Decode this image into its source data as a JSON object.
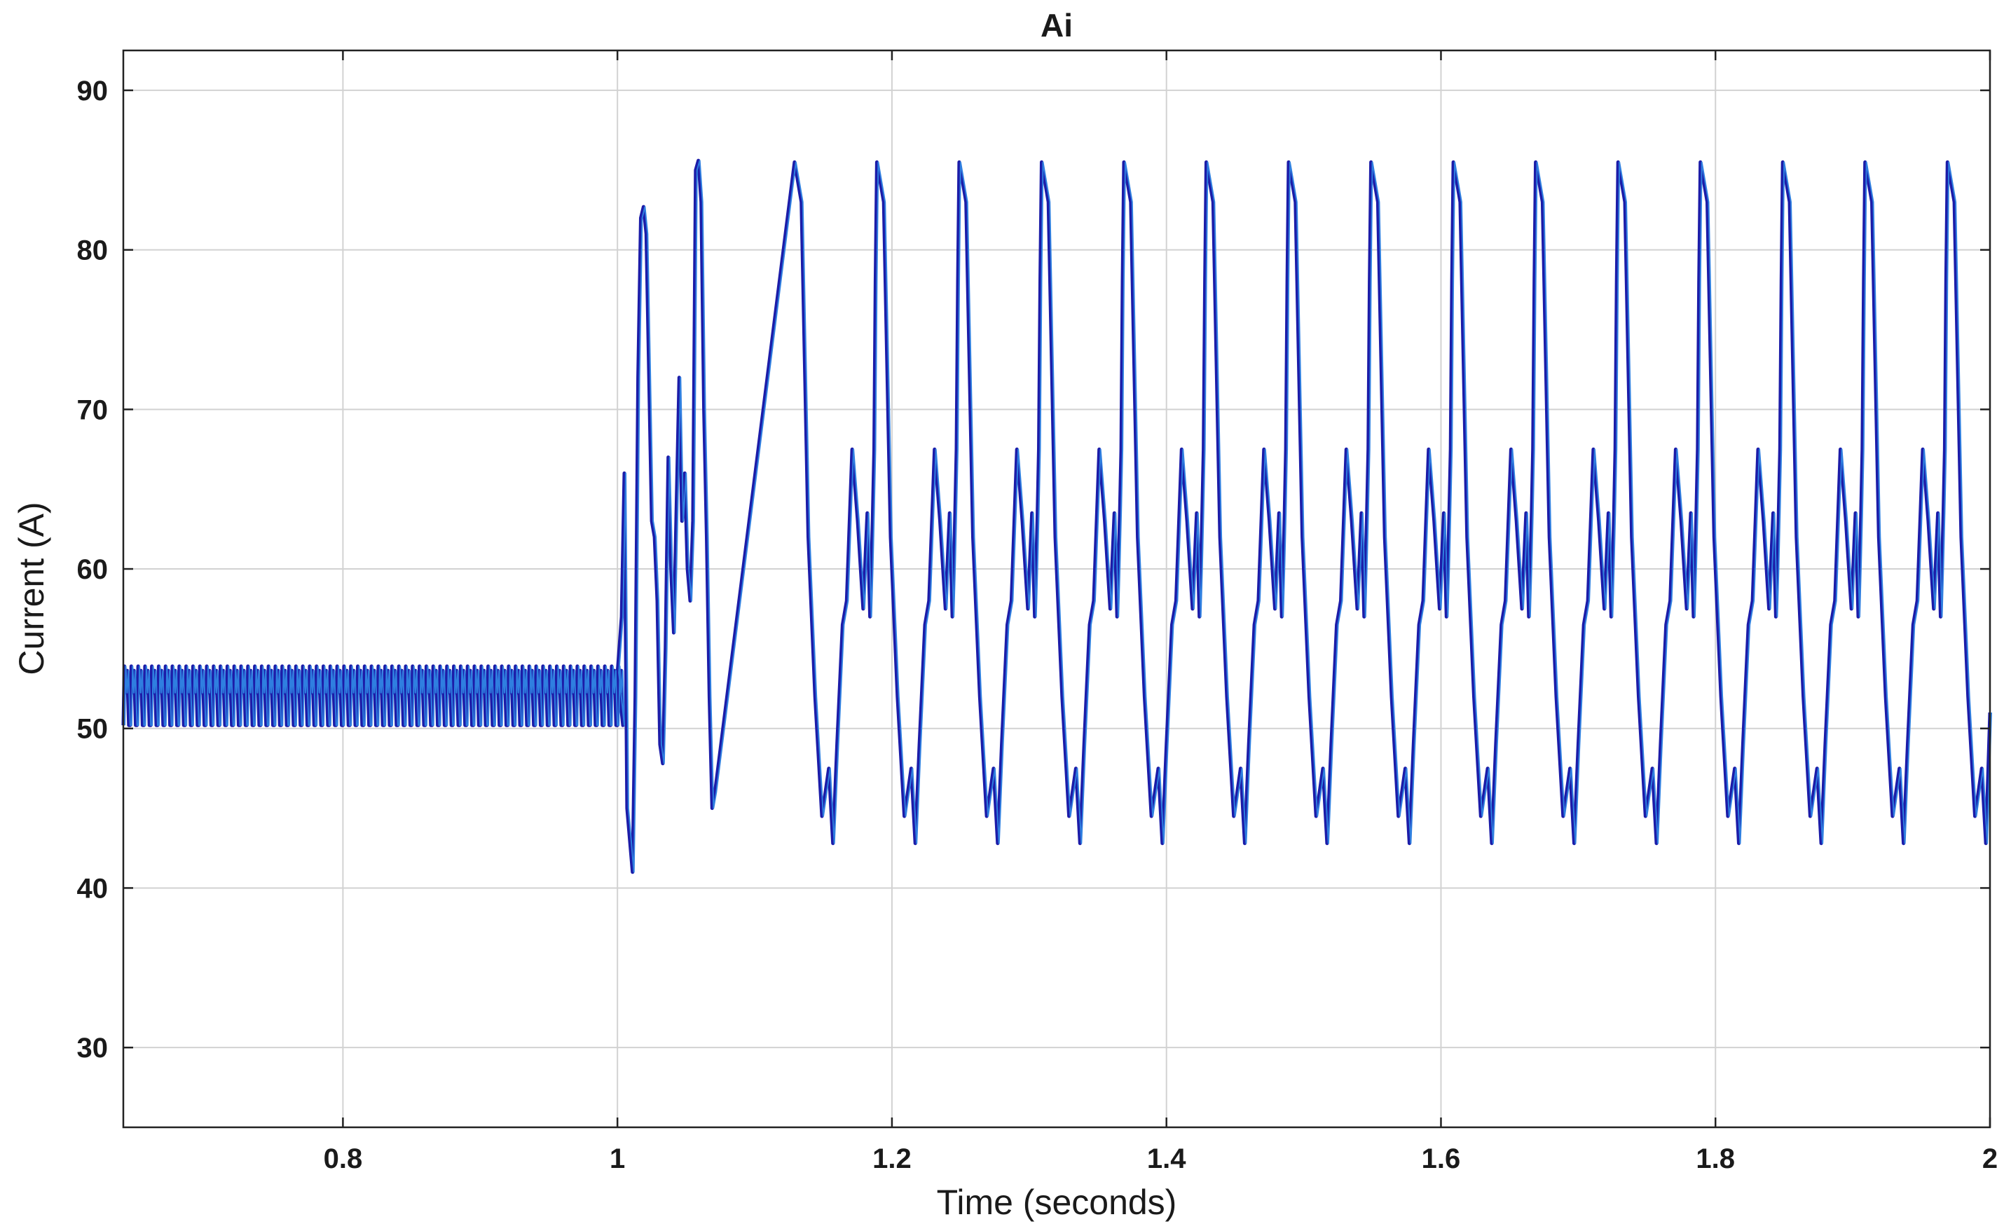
{
  "chart_data": {
    "type": "line",
    "title": "Ai",
    "xlabel": "Time (seconds)",
    "ylabel": "Current (A)",
    "xlim": [
      0.64,
      2.0
    ],
    "ylim": [
      25,
      92.5
    ],
    "grid": true,
    "x_ticks": [
      0.8,
      1,
      1.2,
      1.4,
      1.6,
      1.8,
      2
    ],
    "x_tick_labels": [
      "0.8",
      "1",
      "1.2",
      "1.4",
      "1.6",
      "1.8",
      "2"
    ],
    "y_ticks": [
      30,
      40,
      50,
      60,
      70,
      80,
      90
    ],
    "y_tick_labels": [
      "30",
      "40",
      "50",
      "60",
      "70",
      "80",
      "90"
    ],
    "colors": {
      "line_dark": "#1c1ca8",
      "line_light": "#2f7fe0",
      "grid": "#d2d2d2",
      "axis": "#222222"
    },
    "series": [
      {
        "segments": [
          {
            "kind": "ripple",
            "x_start": 0.64,
            "x_end": 1.0,
            "period": 0.005,
            "min": 50.2,
            "max": 53.9
          },
          {
            "kind": "points",
            "x": [
              1.0,
              1.003,
              1.005,
              1.007,
              1.009,
              1.011,
              1.013,
              1.015,
              1.017,
              1.019,
              1.021,
              1.023,
              1.025,
              1.027,
              1.029,
              1.031,
              1.033,
              1.035,
              1.037,
              1.039,
              1.041,
              1.043,
              1.045,
              1.047,
              1.049,
              1.051,
              1.053,
              1.055,
              1.057,
              1.059,
              1.061,
              1.063,
              1.065,
              1.067,
              1.069,
              1.071
            ],
            "y": [
              53.5,
              57,
              66,
              45,
              43,
              41,
              52,
              72,
              82,
              82.7,
              81,
              72,
              63,
              62,
              58,
              49,
              47.8,
              55,
              67,
              60,
              56,
              64,
              72,
              63,
              66,
              60,
              58,
              63,
              85,
              85.6,
              83,
              70,
              62,
              52,
              45,
              46
            ]
          },
          {
            "kind": "cycle",
            "x_start": 1.07,
            "x_end": 2.0,
            "period": 0.06,
            "peak_x": 1.129,
            "shape_x": [
              0,
              0.005,
              0.01,
              0.015,
              0.02,
              0.025,
              0.028,
              0.031,
              0.035,
              0.038,
              0.042,
              0.046,
              0.05,
              0.053,
              0.055,
              0.056,
              0.057,
              0.058,
              0.059,
              0.06
            ],
            "shape_y": [
              85.5,
              83,
              62,
              52,
              44.5,
              47.5,
              42.8,
              49,
              56.5,
              58,
              67.5,
              63,
              57.5,
              63.5,
              57,
              60,
              63.5,
              67.5,
              78,
              85.5
            ]
          }
        ]
      }
    ]
  }
}
